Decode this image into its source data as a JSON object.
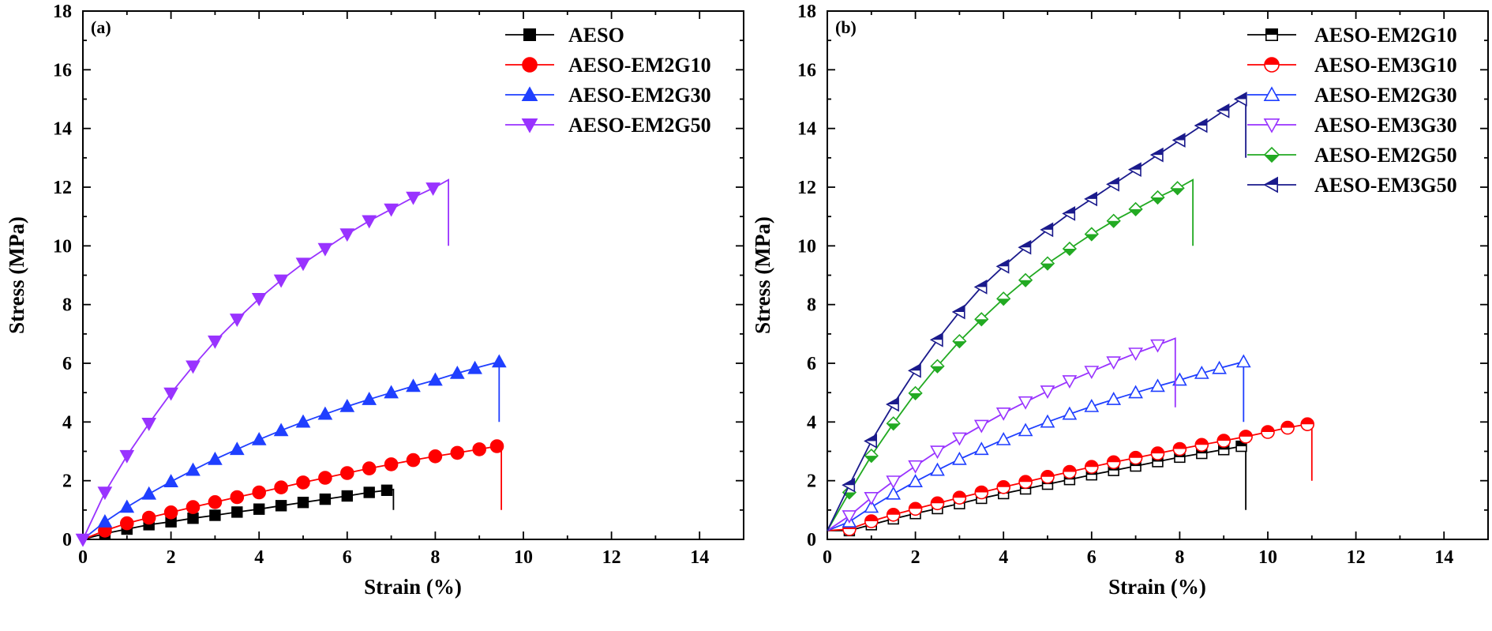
{
  "chart_data": [
    {
      "type": "line",
      "panel_label": "(a)",
      "xlabel": "Strain (%)",
      "ylabel": "Stress (MPa)",
      "xlim": [
        0,
        15
      ],
      "ylim": [
        0,
        18
      ],
      "x_ticks": [
        0,
        2,
        4,
        6,
        8,
        10,
        12,
        14
      ],
      "y_ticks": [
        0,
        2,
        4,
        6,
        8,
        10,
        12,
        14,
        16,
        18
      ],
      "legend_position": "top-right",
      "series": [
        {
          "name": "AESO",
          "color": "#000000",
          "marker": "square",
          "filled": true,
          "points": [
            [
              0,
              0
            ],
            [
              0.5,
              0.2
            ],
            [
              1,
              0.35
            ],
            [
              1.5,
              0.5
            ],
            [
              2,
              0.6
            ],
            [
              2.5,
              0.72
            ],
            [
              3,
              0.82
            ],
            [
              3.5,
              0.93
            ],
            [
              4,
              1.03
            ],
            [
              4.5,
              1.15
            ],
            [
              5,
              1.26
            ],
            [
              5.5,
              1.37
            ],
            [
              6,
              1.48
            ],
            [
              6.5,
              1.6
            ],
            [
              7.05,
              1.7
            ],
            [
              7.05,
              1.0
            ]
          ],
          "marker_x": [
            0.5,
            1,
            1.5,
            2,
            2.5,
            3,
            3.5,
            4,
            4.5,
            5,
            5.5,
            6,
            6.5,
            6.9
          ]
        },
        {
          "name": "AESO-EM2G10",
          "color": "#ff0000",
          "marker": "circle",
          "filled": true,
          "points": [
            [
              0,
              0
            ],
            [
              0.5,
              0.3
            ],
            [
              1,
              0.55
            ],
            [
              1.5,
              0.74
            ],
            [
              2,
              0.92
            ],
            [
              2.5,
              1.1
            ],
            [
              3,
              1.27
            ],
            [
              3.5,
              1.44
            ],
            [
              4,
              1.6
            ],
            [
              4.5,
              1.77
            ],
            [
              5,
              1.94
            ],
            [
              5.5,
              2.1
            ],
            [
              6,
              2.26
            ],
            [
              6.5,
              2.42
            ],
            [
              7,
              2.56
            ],
            [
              7.5,
              2.7
            ],
            [
              8,
              2.83
            ],
            [
              8.5,
              2.95
            ],
            [
              9,
              3.07
            ],
            [
              9.5,
              3.2
            ],
            [
              9.5,
              1.0
            ]
          ],
          "marker_x": [
            0.5,
            1,
            1.5,
            2,
            2.5,
            3,
            3.5,
            4,
            4.5,
            5,
            5.5,
            6,
            6.5,
            7,
            7.5,
            8,
            8.5,
            9,
            9.4
          ]
        },
        {
          "name": "AESO-EM2G30",
          "color": "#1f3fff",
          "marker": "triangle-up",
          "filled": true,
          "points": [
            [
              0,
              0
            ],
            [
              0.5,
              0.6
            ],
            [
              1,
              1.1
            ],
            [
              1.5,
              1.55
            ],
            [
              2,
              1.97
            ],
            [
              2.5,
              2.36
            ],
            [
              3,
              2.73
            ],
            [
              3.5,
              3.07
            ],
            [
              4,
              3.4
            ],
            [
              4.5,
              3.71
            ],
            [
              5,
              4.0
            ],
            [
              5.5,
              4.27
            ],
            [
              6,
              4.53
            ],
            [
              6.5,
              4.77
            ],
            [
              7,
              5.0
            ],
            [
              7.5,
              5.22
            ],
            [
              8,
              5.43
            ],
            [
              8.5,
              5.66
            ],
            [
              9,
              5.87
            ],
            [
              9.45,
              6.05
            ],
            [
              9.45,
              4.0
            ]
          ],
          "marker_x": [
            0.5,
            1,
            1.5,
            2,
            2.5,
            3,
            3.5,
            4,
            4.5,
            5,
            5.5,
            6,
            6.5,
            7,
            7.5,
            8,
            8.5,
            8.9,
            9.45
          ]
        },
        {
          "name": "AESO-EM2G50",
          "color": "#9933ff",
          "marker": "triangle-down",
          "filled": true,
          "points": [
            [
              0,
              0
            ],
            [
              0.5,
              1.6
            ],
            [
              1,
              2.85
            ],
            [
              1.5,
              3.95
            ],
            [
              2,
              4.98
            ],
            [
              2.5,
              5.9
            ],
            [
              3,
              6.75
            ],
            [
              3.5,
              7.5
            ],
            [
              4,
              8.2
            ],
            [
              4.5,
              8.83
            ],
            [
              5,
              9.4
            ],
            [
              5.5,
              9.9
            ],
            [
              6,
              10.4
            ],
            [
              6.5,
              10.85
            ],
            [
              7,
              11.25
            ],
            [
              7.5,
              11.65
            ],
            [
              8,
              12.0
            ],
            [
              8.3,
              12.25
            ],
            [
              8.3,
              10.0
            ]
          ],
          "marker_x": [
            0,
            0.5,
            1,
            1.5,
            2,
            2.5,
            3,
            3.5,
            4,
            4.5,
            5,
            5.5,
            6,
            6.5,
            7,
            7.5,
            7.95
          ]
        }
      ]
    },
    {
      "type": "line",
      "panel_label": "(b)",
      "xlabel": "Strain (%)",
      "ylabel": "Stress (MPa)",
      "xlim": [
        0,
        15
      ],
      "ylim": [
        0,
        18
      ],
      "x_ticks": [
        0,
        2,
        4,
        6,
        8,
        10,
        12,
        14
      ],
      "y_ticks": [
        0,
        2,
        4,
        6,
        8,
        10,
        12,
        14,
        16,
        18
      ],
      "legend_position": "top-right",
      "series": [
        {
          "name": "AESO-EM2G10",
          "color": "#000000",
          "marker": "square-half",
          "filled": false,
          "points": [
            [
              0,
              0.3
            ],
            [
              0.5,
              0.3
            ],
            [
              1,
              0.5
            ],
            [
              1.5,
              0.7
            ],
            [
              2,
              0.88
            ],
            [
              2.5,
              1.05
            ],
            [
              3,
              1.22
            ],
            [
              3.5,
              1.4
            ],
            [
              4,
              1.56
            ],
            [
              4.5,
              1.72
            ],
            [
              5,
              1.88
            ],
            [
              5.5,
              2.04
            ],
            [
              6,
              2.2
            ],
            [
              6.5,
              2.35
            ],
            [
              7,
              2.5
            ],
            [
              7.5,
              2.65
            ],
            [
              8,
              2.8
            ],
            [
              8.5,
              2.93
            ],
            [
              9,
              3.06
            ],
            [
              9.5,
              3.2
            ],
            [
              9.5,
              1.0
            ]
          ],
          "marker_x": [
            0.5,
            1,
            1.5,
            2,
            2.5,
            3,
            3.5,
            4,
            4.5,
            5,
            5.5,
            6,
            6.5,
            7,
            7.5,
            8,
            8.5,
            9,
            9.4
          ]
        },
        {
          "name": "AESO-EM3G10",
          "color": "#ff0000",
          "marker": "circle-half",
          "filled": false,
          "points": [
            [
              0,
              0.3
            ],
            [
              0.5,
              0.35
            ],
            [
              1,
              0.62
            ],
            [
              1.5,
              0.84
            ],
            [
              2,
              1.04
            ],
            [
              2.5,
              1.23
            ],
            [
              3,
              1.42
            ],
            [
              3.5,
              1.6
            ],
            [
              4,
              1.78
            ],
            [
              4.5,
              1.96
            ],
            [
              5,
              2.13
            ],
            [
              5.5,
              2.3
            ],
            [
              6,
              2.47
            ],
            [
              6.5,
              2.63
            ],
            [
              7,
              2.78
            ],
            [
              7.5,
              2.93
            ],
            [
              8,
              3.08
            ],
            [
              8.5,
              3.22
            ],
            [
              9,
              3.36
            ],
            [
              9.5,
              3.5
            ],
            [
              10,
              3.66
            ],
            [
              10.5,
              3.82
            ],
            [
              11,
              3.95
            ],
            [
              11,
              2.0
            ]
          ],
          "marker_x": [
            0.5,
            1,
            1.5,
            2,
            2.5,
            3,
            3.5,
            4,
            4.5,
            5,
            5.5,
            6,
            6.5,
            7,
            7.5,
            8,
            8.5,
            9,
            9.5,
            10,
            10.45,
            10.9
          ]
        },
        {
          "name": "AESO-EM2G30",
          "color": "#1f3fff",
          "marker": "triangle-up",
          "filled": false,
          "points": [
            [
              0,
              0.3
            ],
            [
              0.5,
              0.6
            ],
            [
              1,
              1.1
            ],
            [
              1.5,
              1.55
            ],
            [
              2,
              1.97
            ],
            [
              2.5,
              2.36
            ],
            [
              3,
              2.73
            ],
            [
              3.5,
              3.07
            ],
            [
              4,
              3.4
            ],
            [
              4.5,
              3.71
            ],
            [
              5,
              4.0
            ],
            [
              5.5,
              4.27
            ],
            [
              6,
              4.53
            ],
            [
              6.5,
              4.77
            ],
            [
              7,
              5.0
            ],
            [
              7.5,
              5.22
            ],
            [
              8,
              5.43
            ],
            [
              8.5,
              5.66
            ],
            [
              9,
              5.87
            ],
            [
              9.45,
              6.05
            ],
            [
              9.45,
              4.0
            ]
          ],
          "marker_x": [
            0.5,
            1,
            1.5,
            2,
            2.5,
            3,
            3.5,
            4,
            4.5,
            5,
            5.5,
            6,
            6.5,
            7,
            7.5,
            8,
            8.5,
            8.9,
            9.45
          ]
        },
        {
          "name": "AESO-EM3G30",
          "color": "#9933ff",
          "marker": "triangle-down",
          "filled": false,
          "points": [
            [
              0,
              0.3
            ],
            [
              0.5,
              0.8
            ],
            [
              1,
              1.42
            ],
            [
              1.5,
              1.98
            ],
            [
              2,
              2.5
            ],
            [
              2.5,
              3.0
            ],
            [
              3,
              3.45
            ],
            [
              3.5,
              3.88
            ],
            [
              4,
              4.3
            ],
            [
              4.5,
              4.68
            ],
            [
              5,
              5.05
            ],
            [
              5.5,
              5.4
            ],
            [
              6,
              5.72
            ],
            [
              6.5,
              6.04
            ],
            [
              7,
              6.34
            ],
            [
              7.5,
              6.62
            ],
            [
              7.9,
              6.85
            ],
            [
              7.9,
              4.5
            ]
          ],
          "marker_x": [
            0.5,
            1,
            1.5,
            2,
            2.5,
            3,
            3.5,
            4,
            4.5,
            5,
            5.5,
            6,
            6.5,
            7,
            7.5
          ]
        },
        {
          "name": "AESO-EM2G50",
          "color": "#22aa22",
          "marker": "diamond-half",
          "filled": false,
          "points": [
            [
              0,
              0.3
            ],
            [
              0.5,
              1.6
            ],
            [
              1,
              2.85
            ],
            [
              1.5,
              3.95
            ],
            [
              2,
              4.98
            ],
            [
              2.5,
              5.9
            ],
            [
              3,
              6.75
            ],
            [
              3.5,
              7.5
            ],
            [
              4,
              8.2
            ],
            [
              4.5,
              8.83
            ],
            [
              5,
              9.4
            ],
            [
              5.5,
              9.9
            ],
            [
              6,
              10.4
            ],
            [
              6.5,
              10.85
            ],
            [
              7,
              11.25
            ],
            [
              7.5,
              11.65
            ],
            [
              8,
              12.0
            ],
            [
              8.3,
              12.25
            ],
            [
              8.3,
              10.0
            ]
          ],
          "marker_x": [
            0.5,
            1,
            1.5,
            2,
            2.5,
            3,
            3.5,
            4,
            4.5,
            5,
            5.5,
            6,
            6.5,
            7,
            7.5,
            7.95
          ]
        },
        {
          "name": "AESO-EM3G50",
          "color": "#1a1a8c",
          "marker": "triangle-left-half",
          "filled": false,
          "points": [
            [
              0,
              0.3
            ],
            [
              0.5,
              1.85
            ],
            [
              1,
              3.35
            ],
            [
              1.5,
              4.6
            ],
            [
              2,
              5.75
            ],
            [
              2.5,
              6.8
            ],
            [
              3,
              7.75
            ],
            [
              3.5,
              8.6
            ],
            [
              4,
              9.3
            ],
            [
              4.5,
              9.95
            ],
            [
              5,
              10.55
            ],
            [
              5.5,
              11.1
            ],
            [
              6,
              11.6
            ],
            [
              6.5,
              12.1
            ],
            [
              7,
              12.6
            ],
            [
              7.5,
              13.1
            ],
            [
              8,
              13.6
            ],
            [
              8.5,
              14.1
            ],
            [
              9,
              14.6
            ],
            [
              9.5,
              15.1
            ],
            [
              9.5,
              13.0
            ]
          ],
          "marker_x": [
            0.5,
            1,
            1.5,
            2,
            2.5,
            3,
            3.5,
            4,
            4.5,
            5,
            5.5,
            6,
            6.5,
            7,
            7.5,
            8,
            8.5,
            9,
            9.4
          ]
        }
      ]
    }
  ]
}
